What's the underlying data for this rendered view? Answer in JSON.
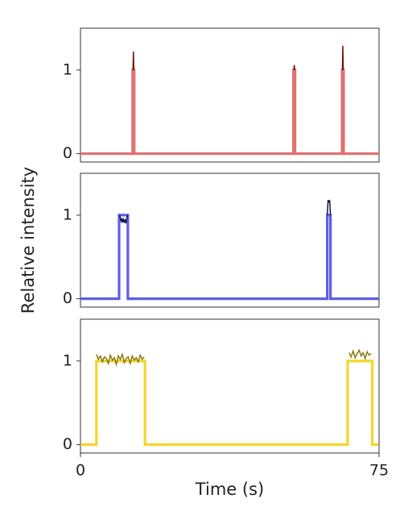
{
  "chart_data": [
    {
      "type": "line",
      "xlim": [
        0,
        75
      ],
      "ylim": [
        -0.1,
        1.5
      ],
      "yticks": [
        0,
        1
      ],
      "series": [
        {
          "color": "#e07272",
          "x": [
            0,
            13.1,
            13.1,
            13.5,
            13.5,
            53.5,
            53.5,
            53.9,
            53.9,
            65.7,
            65.7,
            66.1,
            66.1,
            75
          ],
          "values": [
            0,
            0,
            1,
            1,
            0,
            0,
            1,
            1,
            0,
            0,
            1,
            1,
            0,
            0
          ]
        },
        {
          "color": "#7a0a0a",
          "x": [
            13.2,
            13.3,
            13.4,
            null,
            53.6,
            53.7,
            53.8,
            null,
            65.8,
            65.9,
            66.0
          ],
          "values": [
            1,
            1.22,
            1,
            null,
            1,
            1.06,
            1,
            null,
            1,
            1.29,
            1
          ]
        }
      ]
    },
    {
      "type": "line",
      "xlim": [
        0,
        75
      ],
      "ylim": [
        -0.1,
        1.5
      ],
      "yticks": [
        0,
        1
      ],
      "ylabel": "Relative intensity",
      "series": [
        {
          "color": "#5c5fe0",
          "x": [
            0,
            9.7,
            9.7,
            11.9,
            11.9,
            62.0,
            62.0,
            62.8,
            62.8,
            75
          ],
          "values": [
            0,
            0,
            1,
            1,
            0,
            0,
            1,
            1,
            0,
            0
          ]
        },
        {
          "color": "#12124a",
          "x": [
            9.8,
            10.0,
            10.2,
            10.4,
            10.6,
            10.8,
            11.0,
            11.2,
            11.4,
            11.6,
            11.8,
            null,
            62.0,
            62.2,
            62.4,
            62.6,
            62.8
          ],
          "values": [
            1.0,
            0.97,
            0.93,
            0.96,
            0.91,
            0.95,
            0.92,
            0.94,
            0.9,
            0.95,
            1.0,
            null,
            1.0,
            1.18,
            1.16,
            1.17,
            1.0
          ]
        }
      ]
    },
    {
      "type": "line",
      "xlim": [
        0,
        75
      ],
      "ylim": [
        -0.1,
        1.5
      ],
      "yticks": [
        0,
        1
      ],
      "xticks": [
        0,
        75
      ],
      "xlabel": "Time (s)",
      "series": [
        {
          "color": "#f4d62a",
          "x": [
            0,
            4.0,
            4.0,
            16.2,
            16.2,
            67.1,
            67.1,
            73.3,
            73.3,
            74.8
          ],
          "values": [
            0,
            0,
            1,
            1,
            0,
            0,
            1,
            1,
            0,
            0
          ]
        },
        {
          "color": "#8a7a12",
          "x": [
            4,
            4.5,
            5,
            5.5,
            6,
            6.5,
            7,
            7.5,
            8,
            8.5,
            9,
            9.5,
            10,
            10.5,
            11,
            11.5,
            12,
            12.5,
            13,
            13.5,
            14,
            14.5,
            15,
            15.5,
            16,
            null,
            67.5,
            68,
            68.5,
            69,
            69.5,
            70,
            70.5,
            71,
            71.5,
            72,
            72.5,
            73
          ],
          "values": [
            1.08,
            1.02,
            1.06,
            0.99,
            1.05,
            1.03,
            0.97,
            1.07,
            1.01,
            1.04,
            0.96,
            1.06,
            1.02,
            1.08,
            0.98,
            1.03,
            1.05,
            0.97,
            1.06,
            1.01,
            1.04,
            0.99,
            1.07,
            1.02,
            1.05,
            null,
            1.1,
            1.05,
            1.12,
            1.04,
            1.09,
            1.13,
            1.06,
            1.1,
            1.03,
            1.11,
            1.07,
            1.09
          ]
        }
      ]
    }
  ]
}
